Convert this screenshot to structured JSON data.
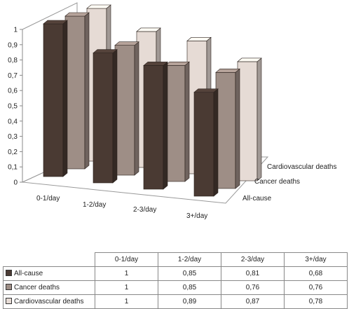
{
  "chart_data": {
    "type": "bar",
    "subtype": "3d-clustered",
    "categories": [
      "0-1/day",
      "1-2/day",
      "2-3/day",
      "3+/day"
    ],
    "series": [
      {
        "name": "All-cause",
        "values": [
          1,
          0.85,
          0.81,
          0.68
        ],
        "color": "#4a3a33"
      },
      {
        "name": "Cancer deaths",
        "values": [
          1,
          0.85,
          0.76,
          0.76
        ],
        "color": "#9e8e86"
      },
      {
        "name": "Cardiovascular deaths",
        "values": [
          1,
          0.89,
          0.87,
          0.78
        ],
        "color": "#e6dbd5"
      }
    ],
    "y_ticks": [
      "0",
      "0,1",
      "0,2",
      "0,3",
      "0,4",
      "0,5",
      "0,6",
      "0,7",
      "0,8",
      "0,9",
      "1"
    ],
    "ylim": [
      0,
      1
    ],
    "grid": false,
    "legend": "data-table"
  },
  "table": {
    "columns": [
      "0-1/day",
      "1-2/day",
      "2-3/day",
      "3+/day"
    ],
    "rows": [
      {
        "label": "All-cause",
        "values": [
          "1",
          "0,85",
          "0,81",
          "0,68"
        ]
      },
      {
        "label": "Cancer deaths",
        "values": [
          "1",
          "0,85",
          "0,76",
          "0,76"
        ]
      },
      {
        "label": "Cardiovascular deaths",
        "values": [
          "1",
          "0,89",
          "0,87",
          "0,78"
        ]
      }
    ]
  }
}
